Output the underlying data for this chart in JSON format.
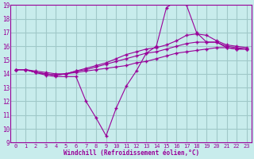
{
  "xlabel": "Windchill (Refroidissement éolien,°C)",
  "xlim": [
    -0.5,
    23.5
  ],
  "ylim": [
    9,
    19
  ],
  "xticks": [
    0,
    1,
    2,
    3,
    4,
    5,
    6,
    7,
    8,
    9,
    10,
    11,
    12,
    13,
    14,
    15,
    16,
    17,
    18,
    19,
    20,
    21,
    22,
    23
  ],
  "yticks": [
    9,
    10,
    11,
    12,
    13,
    14,
    15,
    16,
    17,
    18,
    19
  ],
  "background_color": "#c8ecec",
  "grid_color": "#a0c8c8",
  "line_color": "#990099",
  "lines": [
    {
      "x": [
        0,
        1,
        2,
        3,
        4,
        5,
        6,
        7,
        8,
        9,
        10,
        11,
        12,
        13,
        14,
        15,
        16,
        17,
        18,
        19,
        20,
        21,
        22,
        23
      ],
      "y": [
        14.3,
        14.3,
        14.1,
        13.9,
        13.8,
        13.8,
        13.8,
        12.0,
        10.8,
        9.5,
        11.5,
        13.1,
        14.2,
        15.5,
        16.0,
        18.8,
        19.3,
        19.0,
        17.0,
        16.3,
        16.3,
        15.9,
        15.8,
        15.8
      ]
    },
    {
      "x": [
        0,
        1,
        2,
        3,
        4,
        5,
        6,
        7,
        8,
        9,
        10,
        11,
        12,
        13,
        14,
        15,
        16,
        17,
        18,
        19,
        20,
        21,
        22,
        23
      ],
      "y": [
        14.3,
        14.3,
        14.2,
        14.1,
        14.0,
        14.0,
        14.1,
        14.2,
        14.3,
        14.4,
        14.5,
        14.6,
        14.8,
        14.9,
        15.1,
        15.3,
        15.5,
        15.6,
        15.7,
        15.8,
        15.9,
        15.9,
        15.8,
        15.8
      ]
    },
    {
      "x": [
        0,
        1,
        2,
        3,
        4,
        5,
        6,
        7,
        8,
        9,
        10,
        11,
        12,
        13,
        14,
        15,
        16,
        17,
        18,
        19,
        20,
        21,
        22,
        23
      ],
      "y": [
        14.3,
        14.3,
        14.1,
        14.0,
        13.9,
        14.0,
        14.2,
        14.3,
        14.5,
        14.7,
        14.9,
        15.1,
        15.3,
        15.5,
        15.6,
        15.8,
        16.0,
        16.2,
        16.3,
        16.3,
        16.3,
        16.0,
        15.9,
        15.8
      ]
    },
    {
      "x": [
        0,
        1,
        2,
        3,
        4,
        5,
        6,
        7,
        8,
        9,
        10,
        11,
        12,
        13,
        14,
        15,
        16,
        17,
        18,
        19,
        20,
        21,
        22,
        23
      ],
      "y": [
        14.3,
        14.3,
        14.1,
        14.0,
        13.9,
        14.0,
        14.2,
        14.4,
        14.6,
        14.8,
        15.1,
        15.4,
        15.6,
        15.8,
        15.9,
        16.1,
        16.4,
        16.8,
        16.9,
        16.8,
        16.4,
        16.1,
        16.0,
        15.9
      ]
    }
  ]
}
